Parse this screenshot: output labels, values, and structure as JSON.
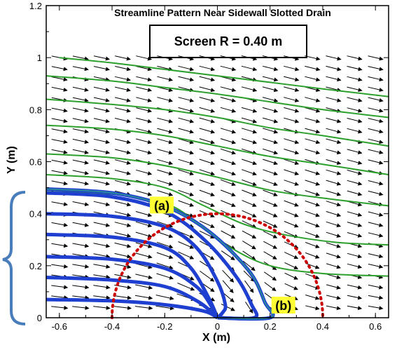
{
  "chart_data": {
    "type": "streamline",
    "title": "Streamline Pattern Near Sidewall Slotted Drain",
    "annotation_box": "Screen R = 0.40 m",
    "xlabel": "X (m)",
    "ylabel": "Y (m)",
    "xlim": [
      -0.65,
      0.65
    ],
    "ylim": [
      0,
      1.2
    ],
    "xticks": [
      -0.6,
      -0.4,
      -0.2,
      0,
      0.2,
      0.4,
      0.6
    ],
    "yticks": [
      0,
      0.2,
      0.4,
      0.6,
      0.8,
      1,
      1.2
    ],
    "xtick_labels": [
      "-0.6",
      "-0.4",
      "-0.2",
      "0",
      "0.2",
      "0.4",
      "0.6"
    ],
    "ytick_labels": [
      "0",
      "0.2",
      "0.4",
      "0.6",
      "0.8",
      "1",
      "1.2"
    ],
    "screen_radius": 0.4,
    "point_labels": [
      {
        "text": "(a)",
        "x": -0.15,
        "y": 0.39
      },
      {
        "text": "(b)",
        "x": 0.2,
        "y": 0.0
      }
    ],
    "colors": {
      "outer_streamline": "#2ca02c",
      "captured_streamline": "#1f3fd0",
      "dividing_streamline": "#2a8a9a",
      "screen_circle": "#cc0000",
      "brace": "#4a7ebb",
      "label_highlight": "#ffff33"
    },
    "outer_streamlines": [
      {
        "x": [
          -0.6,
          -0.4,
          -0.2,
          0.0,
          0.2,
          0.4,
          0.65
        ],
        "y": [
          1.0,
          0.98,
          0.955,
          0.93,
          0.905,
          0.88,
          0.85
        ]
      },
      {
        "x": [
          -0.65,
          -0.4,
          -0.2,
          0.0,
          0.2,
          0.4,
          0.65
        ],
        "y": [
          0.93,
          0.91,
          0.885,
          0.86,
          0.83,
          0.8,
          0.77
        ]
      },
      {
        "x": [
          -0.65,
          -0.4,
          -0.2,
          0.0,
          0.2,
          0.4,
          0.65
        ],
        "y": [
          0.84,
          0.82,
          0.8,
          0.77,
          0.73,
          0.7,
          0.66
        ]
      },
      {
        "x": [
          -0.65,
          -0.4,
          -0.2,
          0.0,
          0.2,
          0.4,
          0.65
        ],
        "y": [
          0.74,
          0.725,
          0.7,
          0.66,
          0.62,
          0.59,
          0.55
        ]
      },
      {
        "x": [
          -0.65,
          -0.4,
          -0.2,
          0.0,
          0.2,
          0.4,
          0.65
        ],
        "y": [
          0.63,
          0.615,
          0.585,
          0.54,
          0.49,
          0.46,
          0.43
        ]
      },
      {
        "x": [
          -0.65,
          -0.4,
          -0.2,
          -0.05,
          0.1,
          0.25,
          0.45,
          0.65
        ],
        "y": [
          0.55,
          0.535,
          0.5,
          0.43,
          0.36,
          0.32,
          0.29,
          0.28
        ]
      },
      {
        "x": [
          -0.65,
          -0.4,
          -0.2,
          -0.08,
          0.05,
          0.2,
          0.4,
          0.65
        ],
        "y": [
          0.49,
          0.475,
          0.44,
          0.37,
          0.27,
          0.2,
          0.17,
          0.16
        ]
      }
    ],
    "captured_streamlines": [
      {
        "x": [
          -0.65,
          -0.4,
          -0.2,
          -0.05,
          0.0
        ],
        "y": [
          0.07,
          0.065,
          0.05,
          0.025,
          0.0
        ]
      },
      {
        "x": [
          -0.65,
          -0.4,
          -0.2,
          -0.07,
          0.0
        ],
        "y": [
          0.155,
          0.145,
          0.12,
          0.06,
          0.0
        ]
      },
      {
        "x": [
          -0.65,
          -0.4,
          -0.2,
          -0.08,
          -0.02,
          0.0
        ],
        "y": [
          0.235,
          0.225,
          0.19,
          0.12,
          0.04,
          0.0
        ]
      },
      {
        "x": [
          -0.65,
          -0.4,
          -0.2,
          -0.1,
          -0.03,
          0.0
        ],
        "y": [
          0.32,
          0.31,
          0.27,
          0.19,
          0.07,
          0.0
        ]
      },
      {
        "x": [
          -0.65,
          -0.4,
          -0.2,
          -0.08,
          0.0,
          0.03,
          0.02,
          0.0
        ],
        "y": [
          0.4,
          0.39,
          0.35,
          0.27,
          0.14,
          0.05,
          0.02,
          0.0
        ]
      },
      {
        "x": [
          -0.65,
          -0.4,
          -0.2,
          -0.05,
          0.07,
          0.13,
          0.14,
          0.0
        ],
        "y": [
          0.48,
          0.465,
          0.41,
          0.3,
          0.16,
          0.05,
          0.0,
          0.0
        ]
      },
      {
        "x": [
          -0.65,
          -0.4,
          -0.2,
          -0.03,
          0.12,
          0.18,
          0.2,
          0.0
        ],
        "y": [
          0.495,
          0.48,
          0.43,
          0.33,
          0.18,
          0.06,
          0.0,
          0.0
        ]
      }
    ]
  }
}
